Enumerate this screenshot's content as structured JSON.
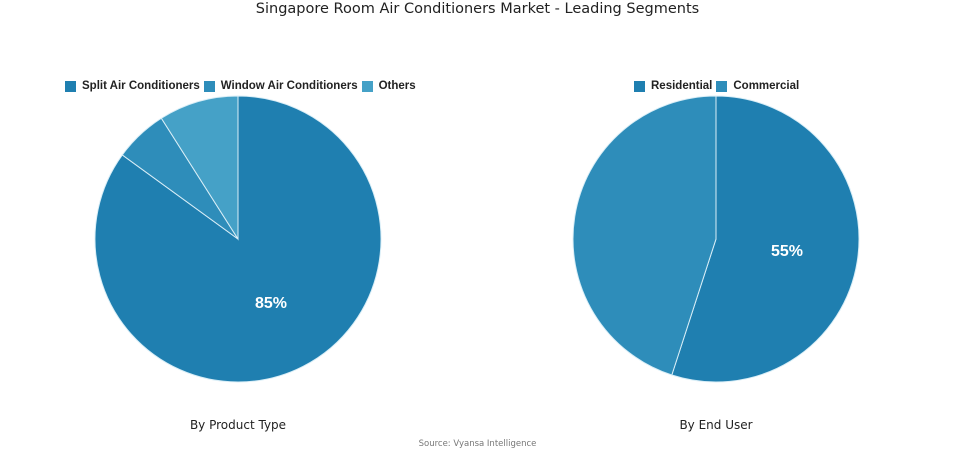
{
  "title": "Singapore Room Air Conditioners Market - Leading Segments",
  "source": "Source: Vyansa Intelligence",
  "charts": [
    {
      "subtitle": "By Product Type",
      "legend": [
        "Split Air Conditioners",
        "Window Air Conditioners",
        "Others"
      ],
      "label": "85%"
    },
    {
      "subtitle": "By End User",
      "legend": [
        "Residential",
        "Commercial"
      ],
      "label": "55%"
    }
  ],
  "chart_data": [
    {
      "type": "pie",
      "title": "By Product Type",
      "categories": [
        "Split Air Conditioners",
        "Window Air Conditioners",
        "Others"
      ],
      "values": [
        85,
        6,
        9
      ],
      "colors": [
        "#1f7fb0",
        "#2e8dba",
        "#45a1c7"
      ],
      "data_labels": [
        "85%"
      ],
      "legend_position": "top"
    },
    {
      "type": "pie",
      "title": "By End User",
      "categories": [
        "Residential",
        "Commercial"
      ],
      "values": [
        55,
        45
      ],
      "colors": [
        "#1f7fb0",
        "#2e8dba"
      ],
      "data_labels": [
        "55%"
      ],
      "legend_position": "top"
    }
  ]
}
